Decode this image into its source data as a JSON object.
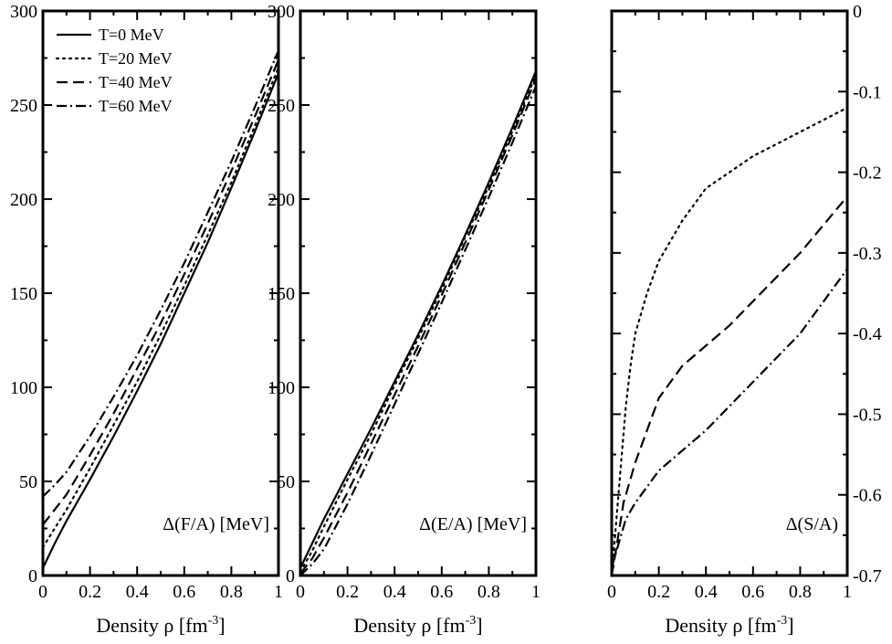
{
  "chart_data": [
    {
      "type": "line",
      "panel_label": "Δ(F/A) [MeV]",
      "xlabel": "Density ρ [fm",
      "xlabel_sup": "-3",
      "xlabel_close": "]",
      "xlim": [
        0,
        1
      ],
      "ylim": [
        0,
        300
      ],
      "x_ticks": [
        0,
        0.2,
        0.4,
        0.6,
        0.8,
        1
      ],
      "x_tick_labels": [
        "0",
        "0.2",
        "0.4",
        "0.6",
        "0.8",
        "1"
      ],
      "y_ticks": [
        0,
        50,
        100,
        150,
        200,
        250,
        300
      ],
      "y_tick_labels": [
        "0",
        "50",
        "100",
        "150",
        "200",
        "250",
        "300"
      ],
      "y_axis_side": "left",
      "legend": {
        "placement": "top-left",
        "entries": [
          {
            "label": "T=0 MeV",
            "style": "solid"
          },
          {
            "label": "T=20 MeV",
            "style": "dotted"
          },
          {
            "label": "T=40 MeV",
            "style": "dashed"
          },
          {
            "label": "T=60 MeV",
            "style": "dashdot"
          }
        ]
      },
      "series": [
        {
          "name": "T=0 MeV",
          "style": "solid",
          "x": [
            0,
            0.05,
            0.1,
            0.2,
            0.3,
            0.4,
            0.5,
            0.6,
            0.7,
            0.8,
            0.9,
            1.0
          ],
          "y": [
            4,
            17,
            29,
            51,
            74,
            98,
            123,
            150,
            177,
            206,
            236,
            267
          ]
        },
        {
          "name": "T=20 MeV",
          "style": "dotted",
          "x": [
            0,
            0.05,
            0.1,
            0.2,
            0.3,
            0.4,
            0.5,
            0.6,
            0.7,
            0.8,
            0.9,
            1.0
          ],
          "y": [
            15,
            25,
            35,
            57,
            80,
            103,
            128,
            154,
            181,
            209,
            239,
            270
          ]
        },
        {
          "name": "T=40 MeV",
          "style": "dashed",
          "x": [
            0,
            0.05,
            0.1,
            0.2,
            0.3,
            0.4,
            0.5,
            0.6,
            0.7,
            0.8,
            0.9,
            1.0
          ],
          "y": [
            27,
            35,
            43,
            64,
            86,
            110,
            134,
            160,
            187,
            215,
            244,
            274
          ]
        },
        {
          "name": "T=60 MeV",
          "style": "dashdot",
          "x": [
            0,
            0.05,
            0.1,
            0.2,
            0.3,
            0.4,
            0.5,
            0.6,
            0.7,
            0.8,
            0.9,
            1.0
          ],
          "y": [
            42,
            48,
            55,
            74,
            95,
            117,
            141,
            166,
            193,
            220,
            249,
            279
          ]
        }
      ]
    },
    {
      "type": "line",
      "panel_label": "Δ(E/A) [MeV]",
      "xlabel": "Density ρ [fm",
      "xlabel_sup": "-3",
      "xlabel_close": "]",
      "xlim": [
        0,
        1
      ],
      "ylim": [
        0,
        300
      ],
      "x_ticks": [
        0,
        0.2,
        0.4,
        0.6,
        0.8,
        1
      ],
      "x_tick_labels": [
        "0",
        "0.2",
        "0.4",
        "0.6",
        "0.8",
        "1"
      ],
      "y_ticks": [
        0,
        50,
        100,
        150,
        200,
        250,
        300
      ],
      "y_tick_labels": [
        "0",
        "50",
        "100",
        "150",
        "200",
        "250",
        "300"
      ],
      "y_axis_side": "left",
      "series": [
        {
          "name": "T=0 MeV",
          "style": "solid",
          "x": [
            0,
            0.05,
            0.1,
            0.2,
            0.3,
            0.4,
            0.5,
            0.6,
            0.7,
            0.8,
            0.9,
            1.0
          ],
          "y": [
            4,
            17,
            30,
            54,
            78,
            103,
            128,
            154,
            181,
            209,
            238,
            268
          ]
        },
        {
          "name": "T=20 MeV",
          "style": "dotted",
          "x": [
            0,
            0.05,
            0.1,
            0.2,
            0.3,
            0.4,
            0.5,
            0.6,
            0.7,
            0.8,
            0.9,
            1.0
          ],
          "y": [
            2,
            13,
            26,
            51,
            75,
            101,
            126,
            152,
            180,
            207,
            236,
            266
          ]
        },
        {
          "name": "T=40 MeV",
          "style": "dashed",
          "x": [
            0,
            0.05,
            0.1,
            0.2,
            0.3,
            0.4,
            0.5,
            0.6,
            0.7,
            0.8,
            0.9,
            1.0
          ],
          "y": [
            1,
            9,
            20,
            44,
            70,
            96,
            122,
            149,
            177,
            205,
            234,
            264
          ]
        },
        {
          "name": "T=60 MeV",
          "style": "dashdot",
          "x": [
            0,
            0.05,
            0.1,
            0.2,
            0.3,
            0.4,
            0.5,
            0.6,
            0.7,
            0.8,
            0.9,
            1.0
          ],
          "y": [
            0,
            6,
            14,
            38,
            64,
            91,
            118,
            145,
            173,
            201,
            230,
            260
          ]
        }
      ]
    },
    {
      "type": "line",
      "panel_label": "Δ(S/A)",
      "xlabel": "Density ρ [fm",
      "xlabel_sup": "-3",
      "xlabel_close": "]",
      "xlim": [
        0,
        1
      ],
      "ylim": [
        -0.7,
        0
      ],
      "x_ticks": [
        0,
        0.2,
        0.4,
        0.6,
        0.8,
        1
      ],
      "x_tick_labels": [
        "0",
        "0.2",
        "0.4",
        "0.6",
        "0.8",
        "1"
      ],
      "y_ticks": [
        -0.7,
        -0.6,
        -0.5,
        -0.4,
        -0.3,
        -0.2,
        -0.1,
        0
      ],
      "y_tick_labels": [
        "-0.7",
        "-0.6",
        "-0.5",
        "-0.4",
        "-0.3",
        "-0.2",
        "-0.1",
        "0"
      ],
      "y_axis_side": "right",
      "series": [
        {
          "name": "T=20 MeV",
          "style": "dotted",
          "x": [
            0,
            0.02,
            0.04,
            0.06,
            0.08,
            0.1,
            0.15,
            0.2,
            0.3,
            0.4,
            0.5,
            0.6,
            0.7,
            0.8,
            0.9,
            1.0
          ],
          "y": [
            -0.7,
            -0.63,
            -0.56,
            -0.49,
            -0.44,
            -0.4,
            -0.35,
            -0.31,
            -0.26,
            -0.22,
            -0.2,
            -0.18,
            -0.165,
            -0.15,
            -0.135,
            -0.12
          ]
        },
        {
          "name": "T=40 MeV",
          "style": "dashed",
          "x": [
            0,
            0.02,
            0.05,
            0.1,
            0.15,
            0.2,
            0.3,
            0.4,
            0.5,
            0.6,
            0.7,
            0.8,
            0.9,
            1.0
          ],
          "y": [
            -0.7,
            -0.665,
            -0.61,
            -0.56,
            -0.52,
            -0.48,
            -0.44,
            -0.415,
            -0.39,
            -0.36,
            -0.33,
            -0.3,
            -0.265,
            -0.23
          ]
        },
        {
          "name": "T=60 MeV",
          "style": "dashdot",
          "x": [
            0,
            0.03,
            0.06,
            0.1,
            0.15,
            0.2,
            0.3,
            0.4,
            0.5,
            0.6,
            0.7,
            0.8,
            0.9,
            1.0
          ],
          "y": [
            -0.69,
            -0.66,
            -0.63,
            -0.61,
            -0.59,
            -0.57,
            -0.545,
            -0.52,
            -0.49,
            -0.46,
            -0.43,
            -0.4,
            -0.36,
            -0.32
          ]
        }
      ]
    }
  ]
}
